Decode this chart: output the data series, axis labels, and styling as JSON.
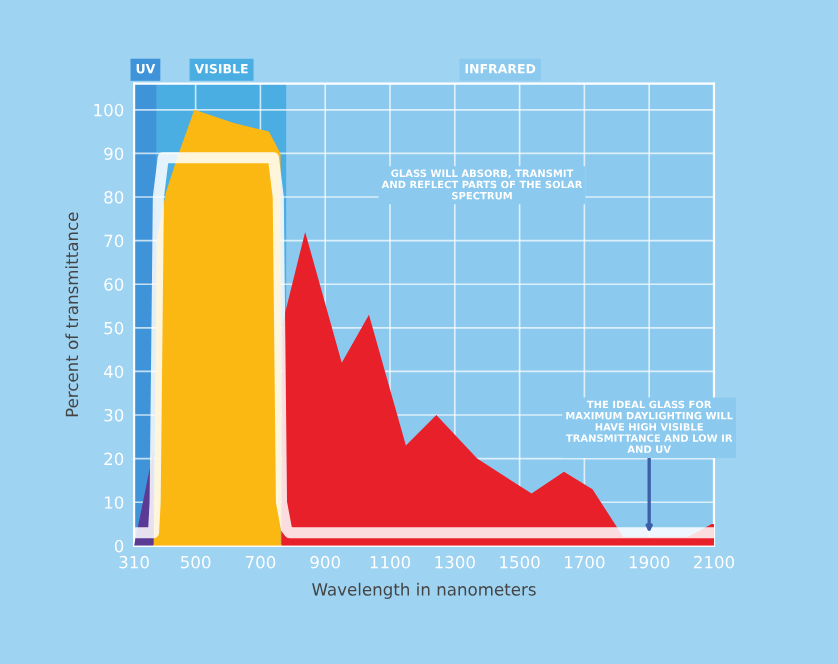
{
  "chart_data": {
    "type": "area",
    "xlabel": "Wavelength in nanometers",
    "ylabel": "Percent of transmittance",
    "series": [
      {
        "color": "#5b3a96",
        "x": [
          310,
          370
        ],
        "values": [
          0,
          22
        ]
      },
      {
        "color": "#fbb813",
        "x": [
          371,
          380,
          408,
          443,
          496,
          618,
          726,
          762,
          763
        ],
        "values": [
          0,
          70,
          81,
          89,
          100,
          97,
          95,
          90,
          0
        ]
      },
      {
        "color": "#e8202a",
        "x": [
          765,
          768,
          838,
          951,
          1035,
          1149,
          1243,
          1369,
          1537,
          1637,
          1725,
          1820,
          2019,
          2093,
          2100
        ],
        "values": [
          0,
          51,
          72,
          42,
          53,
          23,
          30,
          20,
          12,
          17,
          13,
          2,
          2,
          5,
          5
        ]
      },
      {
        "type": "line",
        "color": "#ffffff",
        "x": [
          310,
          370,
          375,
          385,
          400,
          740,
          755,
          765,
          780,
          790,
          2100
        ],
        "values": [
          3,
          3,
          10,
          80,
          89,
          89,
          80,
          10,
          4,
          3,
          3
        ]
      }
    ],
    "xlim": [
      310,
      2100
    ],
    "ylim": [
      0,
      106
    ],
    "xticks": [
      310,
      500,
      700,
      900,
      1100,
      1300,
      1500,
      1700,
      1900,
      2100
    ],
    "yticks": [
      0,
      10,
      20,
      30,
      40,
      50,
      60,
      70,
      80,
      90,
      100
    ],
    "grid": true,
    "bands": [
      {
        "axis": "x",
        "from": 310,
        "to": 380,
        "label": "UV",
        "color": "#3f93d8"
      },
      {
        "axis": "x",
        "from": 380,
        "to": 780,
        "label": "VISIBLE",
        "color": "#4aaee3"
      },
      {
        "axis": "x",
        "from": 780,
        "to": 2100,
        "label": "INFRARED",
        "color": "#8bc9ee"
      }
    ],
    "annotations": [
      "GLASS WILL ABSORB, TRANSMIT AND REFLECT PARTS OF THE SOLAR SPECTRUM",
      {
        "text": "THE IDEAL GLASS FOR MAXIMUM DAYLIGHTING WILL HAVE HIGH VISIBLE TRANSMITTANCE AND LOW IR AND UV",
        "x": 1900,
        "y": 3
      }
    ]
  }
}
